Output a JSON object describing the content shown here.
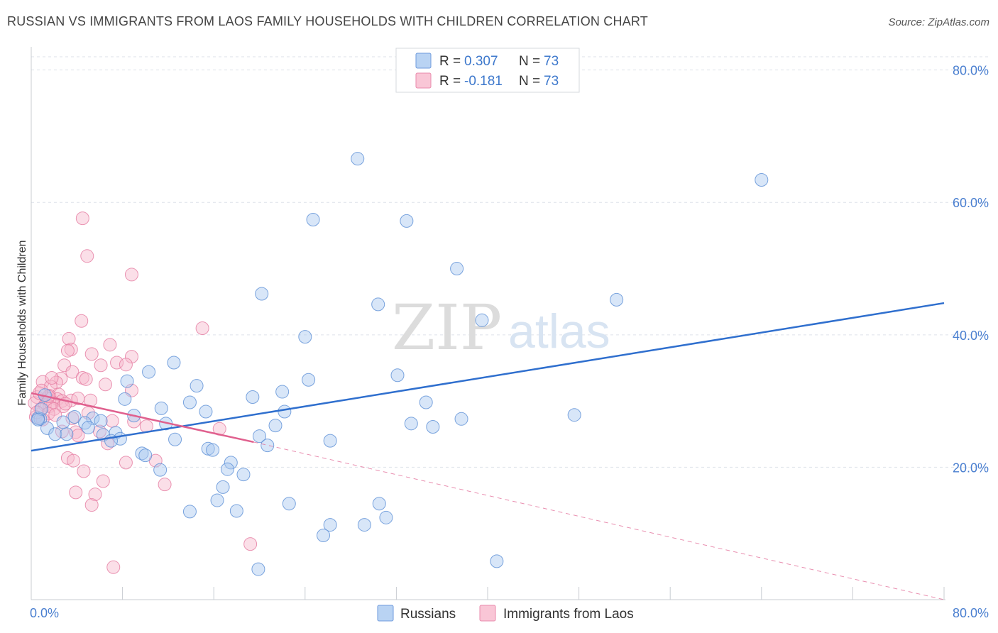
{
  "title": "RUSSIAN VS IMMIGRANTS FROM LAOS FAMILY HOUSEHOLDS WITH CHILDREN CORRELATION CHART",
  "source": "Source: ZipAtlas.com",
  "watermark": {
    "left": "ZIP",
    "right": "atlas"
  },
  "legend": {
    "r_label": "R = ",
    "n_label": "N = ",
    "rows": [
      {
        "r": "0.307",
        "n": "73"
      },
      {
        "r": "-0.181",
        "n": "73"
      }
    ]
  },
  "bottom_legend": [
    "Russians",
    "Immigrants from Laos"
  ],
  "colors": {
    "blue_fill": "#a9c8f0",
    "blue_stroke": "#5b8fd6",
    "blue_line": "#2f6fce",
    "pink_fill": "#f7b8cc",
    "pink_stroke": "#e57aa0",
    "pink_line": "#e0608e",
    "grid": "#dde2ea",
    "tick_label": "#4a7fd0"
  },
  "chart_data": {
    "type": "scatter",
    "ylabel": "Family Households with Children",
    "x_tick_labels": [
      "0.0%",
      "80.0%"
    ],
    "y_tick_labels": [
      "20.0%",
      "40.0%",
      "60.0%",
      "80.0%"
    ],
    "xlim": [
      0,
      80
    ],
    "ylim": [
      0,
      82
    ],
    "y_ticks": [
      20,
      40,
      60,
      80
    ],
    "series": [
      {
        "name": "Russians",
        "trend": {
          "x0": 0,
          "y0": 22.5,
          "x1": 80,
          "y1": 44.8
        },
        "points": [
          [
            28.6,
            66.6
          ],
          [
            64,
            63.4
          ],
          [
            24.7,
            57.4
          ],
          [
            32.9,
            57.2
          ],
          [
            37.3,
            50.0
          ],
          [
            20.2,
            46.2
          ],
          [
            51.3,
            45.3
          ],
          [
            30.4,
            44.6
          ],
          [
            39.5,
            42.2
          ],
          [
            24,
            39.7
          ],
          [
            12.5,
            35.8
          ],
          [
            10.3,
            34.4
          ],
          [
            24.3,
            33.2
          ],
          [
            32.1,
            33.9
          ],
          [
            8.4,
            33.0
          ],
          [
            14.5,
            32.3
          ],
          [
            22,
            31.4
          ],
          [
            19.4,
            30.6
          ],
          [
            8.2,
            30.3
          ],
          [
            13.9,
            29.8
          ],
          [
            34.6,
            29.8
          ],
          [
            11.4,
            28.9
          ],
          [
            15.3,
            28.4
          ],
          [
            22.2,
            28.4
          ],
          [
            47.6,
            27.9
          ],
          [
            9,
            27.8
          ],
          [
            37.7,
            27.3
          ],
          [
            3.8,
            27.6
          ],
          [
            5.4,
            27.4
          ],
          [
            2.8,
            26.8
          ],
          [
            6.1,
            27.0
          ],
          [
            4.7,
            26.7
          ],
          [
            0.8,
            27.3
          ],
          [
            11.8,
            26.6
          ],
          [
            33.3,
            26.6
          ],
          [
            21.4,
            26.3
          ],
          [
            35.2,
            26.1
          ],
          [
            1.4,
            25.9
          ],
          [
            5.0,
            26.0
          ],
          [
            7.4,
            25.2
          ],
          [
            2.1,
            25.0
          ],
          [
            3.1,
            25.0
          ],
          [
            6.3,
            24.9
          ],
          [
            20,
            24.7
          ],
          [
            7.8,
            24.3
          ],
          [
            7.0,
            24.0
          ],
          [
            26.2,
            24.0
          ],
          [
            12.6,
            24.2
          ],
          [
            20.7,
            23.3
          ],
          [
            15.5,
            22.8
          ],
          [
            15.9,
            22.6
          ],
          [
            9.7,
            22.1
          ],
          [
            10.0,
            21.8
          ],
          [
            17.5,
            20.7
          ],
          [
            17.2,
            19.7
          ],
          [
            11.3,
            19.6
          ],
          [
            18.6,
            18.9
          ],
          [
            16.8,
            17.0
          ],
          [
            0.6,
            27.4
          ],
          [
            0.9,
            28.8
          ],
          [
            1.2,
            30.9
          ],
          [
            16.3,
            15.0
          ],
          [
            22.6,
            14.5
          ],
          [
            30.5,
            14.5
          ],
          [
            13.9,
            13.3
          ],
          [
            18.0,
            13.4
          ],
          [
            31.1,
            12.4
          ],
          [
            26.2,
            11.3
          ],
          [
            29.2,
            11.3
          ],
          [
            25.6,
            9.7
          ],
          [
            40.8,
            5.8
          ],
          [
            19.9,
            4.6
          ],
          [
            0.6,
            27.2
          ]
        ]
      },
      {
        "name": "Immigrants from Laos",
        "trend": {
          "x0": 0,
          "y0": 31.2,
          "x1": 19.5,
          "y1": 23.8
        },
        "trend_dashed": {
          "x0": 19.5,
          "y0": 23.8,
          "x1": 80,
          "y1": 0
        },
        "points": [
          [
            4.5,
            57.6
          ],
          [
            4.9,
            51.9
          ],
          [
            8.8,
            49.1
          ],
          [
            4.4,
            42.1
          ],
          [
            15,
            41.0
          ],
          [
            3.3,
            39.4
          ],
          [
            6.9,
            38.5
          ],
          [
            3.5,
            37.8
          ],
          [
            3.2,
            37.6
          ],
          [
            5.3,
            37.1
          ],
          [
            8.8,
            36.7
          ],
          [
            2.9,
            35.4
          ],
          [
            6.1,
            35.4
          ],
          [
            7.5,
            35.8
          ],
          [
            8.3,
            35.5
          ],
          [
            3.6,
            34.4
          ],
          [
            4.5,
            33.5
          ],
          [
            4.8,
            33.3
          ],
          [
            2.6,
            33.4
          ],
          [
            1.0,
            32.9
          ],
          [
            2.2,
            32.8
          ],
          [
            6.5,
            32.5
          ],
          [
            1.7,
            32.2
          ],
          [
            8.8,
            31.6
          ],
          [
            2.4,
            31.0
          ],
          [
            1.6,
            30.8
          ],
          [
            0.5,
            30.6
          ],
          [
            1.4,
            30.4
          ],
          [
            2.3,
            30.3
          ],
          [
            2.7,
            30.0
          ],
          [
            1.9,
            29.8
          ],
          [
            3.5,
            30.1
          ],
          [
            5.2,
            30.1
          ],
          [
            0.3,
            29.7
          ],
          [
            1.2,
            29.4
          ],
          [
            1.6,
            29.2
          ],
          [
            2.0,
            28.8
          ],
          [
            0.8,
            28.7
          ],
          [
            1.5,
            28.1
          ],
          [
            0.4,
            27.6
          ],
          [
            1.0,
            27.2
          ],
          [
            3.6,
            27.4
          ],
          [
            7.1,
            27.0
          ],
          [
            10.1,
            26.2
          ],
          [
            2.7,
            25.4
          ],
          [
            3.9,
            25.3
          ],
          [
            6.7,
            23.6
          ],
          [
            16.5,
            25.8
          ],
          [
            4.1,
            24.8
          ],
          [
            3.2,
            21.4
          ],
          [
            3.7,
            21.0
          ],
          [
            10.9,
            21.0
          ],
          [
            8.3,
            20.7
          ],
          [
            4.6,
            19.4
          ],
          [
            6.3,
            17.9
          ],
          [
            11.7,
            17.4
          ],
          [
            3.9,
            16.2
          ],
          [
            5.6,
            15.9
          ],
          [
            5.3,
            14.3
          ],
          [
            19.2,
            8.4
          ],
          [
            7.2,
            4.9
          ],
          [
            1.5,
            30.7
          ],
          [
            2.8,
            29.2
          ],
          [
            0.7,
            31.2
          ],
          [
            4.1,
            30.4
          ],
          [
            1.8,
            33.5
          ],
          [
            6.0,
            25.4
          ],
          [
            9.0,
            26.9
          ],
          [
            5.0,
            28.2
          ],
          [
            0.9,
            31.6
          ],
          [
            2.1,
            27.9
          ],
          [
            3.0,
            29.6
          ],
          [
            0.5,
            28.3
          ]
        ]
      }
    ]
  }
}
